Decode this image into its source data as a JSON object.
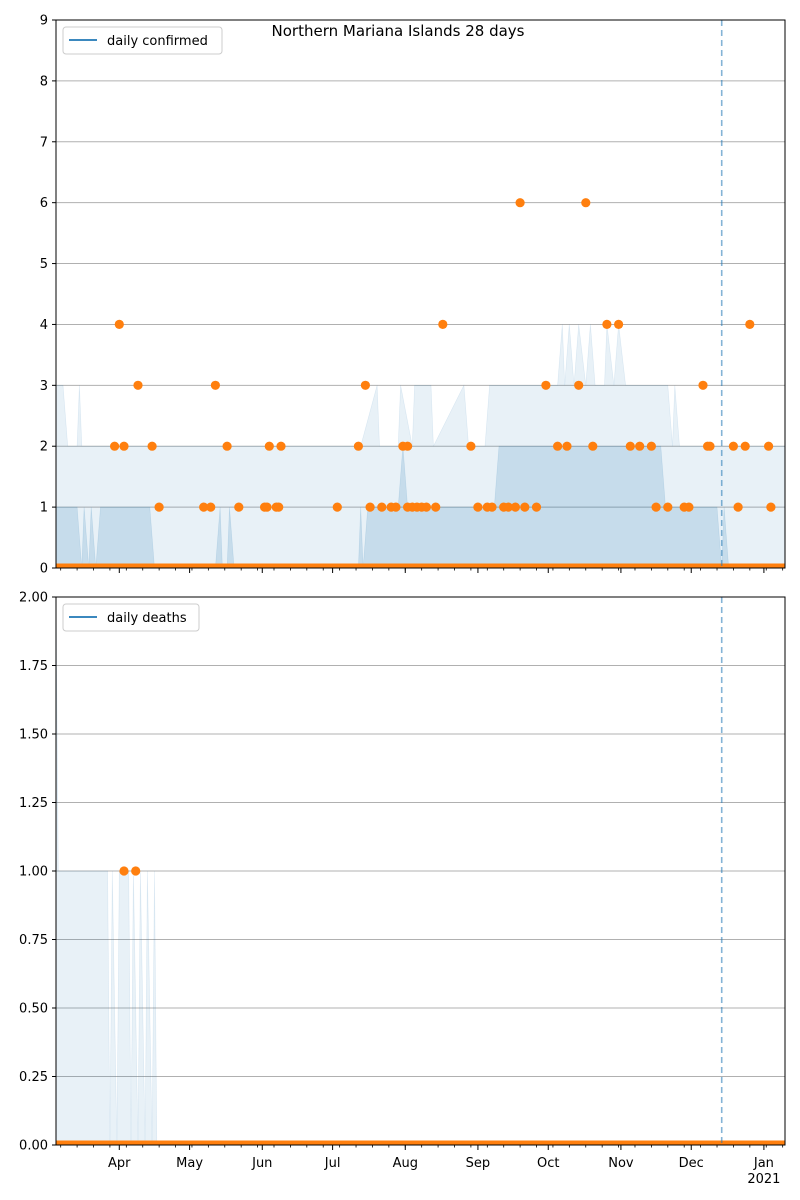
{
  "figure": {
    "title": "Northern Mariana Islands 28 days"
  },
  "colors": {
    "series_line": "#1f77b4",
    "points": "#ff7f0e",
    "band": "#1f77b4",
    "grid": "#b0b0b0",
    "marker_line": "#1f77b4"
  },
  "chart_data": [
    {
      "type": "scatter",
      "name": "confirmed-panel",
      "legend": [
        "daily confirmed"
      ],
      "legend_placement": "top-left",
      "x_type": "date",
      "xlim": [
        "2020-03-05",
        "2021-01-10"
      ],
      "ylim": [
        0,
        9
      ],
      "yticks": [
        0,
        1,
        2,
        3,
        4,
        5,
        6,
        7,
        8,
        9
      ],
      "ytick_labels": [
        "0",
        "1",
        "2",
        "3",
        "4",
        "5",
        "6",
        "7",
        "8",
        "9"
      ],
      "xticks": [
        "2020-04-01",
        "2020-05-01",
        "2020-06-01",
        "2020-07-01",
        "2020-08-01",
        "2020-09-01",
        "2020-10-01",
        "2020-11-01",
        "2020-12-01",
        "2021-01-01"
      ],
      "xtick_labels": [
        "Apr",
        "May",
        "Jun",
        "Jul",
        "Aug",
        "Sep",
        "Oct",
        "Nov",
        "Dec",
        "Jan"
      ],
      "xtick_year_label": "2021",
      "grid": "horizontal",
      "vline": "2020-12-14",
      "points": [
        {
          "x": "2020-03-30",
          "y": 2
        },
        {
          "x": "2020-04-01",
          "y": 4
        },
        {
          "x": "2020-04-03",
          "y": 2
        },
        {
          "x": "2020-04-09",
          "y": 3
        },
        {
          "x": "2020-04-15",
          "y": 2
        },
        {
          "x": "2020-04-18",
          "y": 1
        },
        {
          "x": "2020-05-07",
          "y": 1
        },
        {
          "x": "2020-05-10",
          "y": 1
        },
        {
          "x": "2020-05-12",
          "y": 3
        },
        {
          "x": "2020-05-17",
          "y": 2
        },
        {
          "x": "2020-05-22",
          "y": 1
        },
        {
          "x": "2020-06-02",
          "y": 1
        },
        {
          "x": "2020-06-03",
          "y": 1
        },
        {
          "x": "2020-06-04",
          "y": 2
        },
        {
          "x": "2020-06-07",
          "y": 1
        },
        {
          "x": "2020-06-08",
          "y": 1
        },
        {
          "x": "2020-06-09",
          "y": 2
        },
        {
          "x": "2020-07-03",
          "y": 1
        },
        {
          "x": "2020-07-12",
          "y": 2
        },
        {
          "x": "2020-07-15",
          "y": 3
        },
        {
          "x": "2020-07-17",
          "y": 1
        },
        {
          "x": "2020-07-22",
          "y": 1
        },
        {
          "x": "2020-07-26",
          "y": 1
        },
        {
          "x": "2020-07-28",
          "y": 1
        },
        {
          "x": "2020-07-31",
          "y": 2
        },
        {
          "x": "2020-08-02",
          "y": 2
        },
        {
          "x": "2020-08-02",
          "y": 1
        },
        {
          "x": "2020-08-04",
          "y": 1
        },
        {
          "x": "2020-08-06",
          "y": 1
        },
        {
          "x": "2020-08-08",
          "y": 1
        },
        {
          "x": "2020-08-10",
          "y": 1
        },
        {
          "x": "2020-08-14",
          "y": 1
        },
        {
          "x": "2020-08-17",
          "y": 4
        },
        {
          "x": "2020-08-29",
          "y": 2
        },
        {
          "x": "2020-09-01",
          "y": 1
        },
        {
          "x": "2020-09-05",
          "y": 1
        },
        {
          "x": "2020-09-07",
          "y": 1
        },
        {
          "x": "2020-09-12",
          "y": 1
        },
        {
          "x": "2020-09-14",
          "y": 1
        },
        {
          "x": "2020-09-17",
          "y": 1
        },
        {
          "x": "2020-09-19",
          "y": 6
        },
        {
          "x": "2020-09-21",
          "y": 1
        },
        {
          "x": "2020-09-26",
          "y": 1
        },
        {
          "x": "2020-09-30",
          "y": 3
        },
        {
          "x": "2020-10-05",
          "y": 2
        },
        {
          "x": "2020-10-09",
          "y": 2
        },
        {
          "x": "2020-10-14",
          "y": 3
        },
        {
          "x": "2020-10-17",
          "y": 6
        },
        {
          "x": "2020-10-20",
          "y": 2
        },
        {
          "x": "2020-10-26",
          "y": 4
        },
        {
          "x": "2020-10-31",
          "y": 4
        },
        {
          "x": "2020-11-05",
          "y": 2
        },
        {
          "x": "2020-11-09",
          "y": 2
        },
        {
          "x": "2020-11-14",
          "y": 2
        },
        {
          "x": "2020-11-16",
          "y": 1
        },
        {
          "x": "2020-11-21",
          "y": 1
        },
        {
          "x": "2020-11-28",
          "y": 1
        },
        {
          "x": "2020-11-30",
          "y": 1
        },
        {
          "x": "2020-12-06",
          "y": 3
        },
        {
          "x": "2020-12-08",
          "y": 2
        },
        {
          "x": "2020-12-09",
          "y": 2
        },
        {
          "x": "2020-12-19",
          "y": 2
        },
        {
          "x": "2020-12-21",
          "y": 1
        },
        {
          "x": "2020-12-24",
          "y": 2
        },
        {
          "x": "2020-12-26",
          "y": 4
        },
        {
          "x": "2021-01-03",
          "y": 2
        },
        {
          "x": "2021-01-04",
          "y": 1
        }
      ],
      "zero_baseline": {
        "from": "2020-03-05",
        "to": "2021-01-10",
        "y": 0
      },
      "band_high": [
        [
          "2020-03-05",
          3
        ],
        [
          "2020-03-08",
          3
        ],
        [
          "2020-03-10",
          2
        ],
        [
          "2020-03-14",
          2
        ],
        [
          "2020-03-15",
          3
        ],
        [
          "2020-03-16",
          2
        ],
        [
          "2020-04-28",
          2
        ],
        [
          "2020-06-14",
          2
        ],
        [
          "2020-06-15",
          2
        ],
        [
          "2020-06-30",
          2
        ],
        [
          "2020-07-01",
          2
        ],
        [
          "2020-07-13",
          2
        ],
        [
          "2020-07-20",
          3
        ],
        [
          "2020-07-21",
          2
        ],
        [
          "2020-07-29",
          2
        ],
        [
          "2020-07-30",
          3
        ],
        [
          "2020-08-04",
          2
        ],
        [
          "2020-08-05",
          3
        ],
        [
          "2020-08-12",
          3
        ],
        [
          "2020-08-13",
          2
        ],
        [
          "2020-08-26",
          3
        ],
        [
          "2020-08-28",
          2
        ],
        [
          "2020-09-04",
          2
        ],
        [
          "2020-09-06",
          3
        ],
        [
          "2020-09-10",
          3
        ],
        [
          "2020-09-12",
          3
        ],
        [
          "2020-10-05",
          3
        ],
        [
          "2020-10-07",
          4
        ],
        [
          "2020-10-08",
          3
        ],
        [
          "2020-10-10",
          4
        ],
        [
          "2020-10-12",
          3
        ],
        [
          "2020-10-14",
          4
        ],
        [
          "2020-10-17",
          3
        ],
        [
          "2020-10-19",
          4
        ],
        [
          "2020-10-21",
          3
        ],
        [
          "2020-10-25",
          3
        ],
        [
          "2020-10-26",
          4
        ],
        [
          "2020-10-29",
          3
        ],
        [
          "2020-10-31",
          4
        ],
        [
          "2020-11-03",
          3
        ],
        [
          "2020-11-21",
          3
        ],
        [
          "2020-11-23",
          2
        ],
        [
          "2020-11-24",
          3
        ],
        [
          "2020-11-26",
          2
        ],
        [
          "2021-01-10",
          2
        ]
      ],
      "band_low": [
        [
          "2020-03-05",
          1
        ],
        [
          "2020-03-14",
          1
        ],
        [
          "2020-03-16",
          0
        ],
        [
          "2020-03-17",
          1
        ],
        [
          "2020-03-19",
          0
        ],
        [
          "2020-03-20",
          1
        ],
        [
          "2020-03-22",
          0
        ],
        [
          "2020-03-24",
          1
        ],
        [
          "2020-04-14",
          1
        ],
        [
          "2020-04-16",
          0
        ],
        [
          "2020-05-12",
          0
        ],
        [
          "2020-05-14",
          1
        ],
        [
          "2020-05-15",
          0
        ],
        [
          "2020-05-17",
          0
        ],
        [
          "2020-05-18",
          1
        ],
        [
          "2020-05-20",
          0
        ],
        [
          "2020-07-12",
          0
        ],
        [
          "2020-07-13",
          1
        ],
        [
          "2020-07-14",
          0
        ],
        [
          "2020-07-16",
          1
        ],
        [
          "2020-07-29",
          1
        ],
        [
          "2020-07-31",
          2
        ],
        [
          "2020-08-02",
          1
        ],
        [
          "2020-09-08",
          1
        ],
        [
          "2020-09-10",
          2
        ],
        [
          "2020-11-18",
          2
        ],
        [
          "2020-11-20",
          1
        ],
        [
          "2020-12-12",
          1
        ],
        [
          "2020-12-14",
          0
        ],
        [
          "2020-12-15",
          1
        ],
        [
          "2020-12-17",
          0
        ],
        [
          "2021-01-10",
          0
        ]
      ]
    },
    {
      "type": "scatter",
      "name": "deaths-panel",
      "legend": [
        "daily deaths"
      ],
      "legend_placement": "top-left",
      "x_type": "date",
      "xlim": [
        "2020-03-05",
        "2021-01-10"
      ],
      "ylim": [
        0,
        2
      ],
      "yticks": [
        0,
        0.25,
        0.5,
        0.75,
        1,
        1.25,
        1.5,
        1.75,
        2
      ],
      "ytick_labels": [
        "0.00",
        "0.25",
        "0.50",
        "0.75",
        "1.00",
        "1.25",
        "1.50",
        "1.75",
        "2.00"
      ],
      "xticks": [
        "2020-04-01",
        "2020-05-01",
        "2020-06-01",
        "2020-07-01",
        "2020-08-01",
        "2020-09-01",
        "2020-10-01",
        "2020-11-01",
        "2020-12-01",
        "2021-01-01"
      ],
      "xtick_labels": [
        "Apr",
        "May",
        "Jun",
        "Jul",
        "Aug",
        "Sep",
        "Oct",
        "Nov",
        "Dec",
        "Jan"
      ],
      "xtick_year_label": "2021",
      "grid": "horizontal",
      "vline": "2020-12-14",
      "points": [
        {
          "x": "2020-04-03",
          "y": 1
        },
        {
          "x": "2020-04-08",
          "y": 1
        }
      ],
      "zero_baseline": {
        "from": "2020-03-05",
        "to": "2021-01-10",
        "y": 0
      },
      "band_high": [
        [
          "2020-03-05",
          2
        ],
        [
          "2020-03-06",
          1
        ],
        [
          "2020-03-27",
          1
        ],
        [
          "2020-03-28",
          0
        ],
        [
          "2020-03-29",
          1
        ],
        [
          "2020-03-31",
          0
        ],
        [
          "2020-04-01",
          1
        ],
        [
          "2020-04-05",
          1
        ],
        [
          "2020-04-06",
          0
        ],
        [
          "2020-04-07",
          1
        ],
        [
          "2020-04-09",
          0
        ],
        [
          "2020-04-10",
          1
        ],
        [
          "2020-04-12",
          0
        ],
        [
          "2020-04-13",
          1
        ],
        [
          "2020-04-15",
          0
        ],
        [
          "2020-04-16",
          1
        ],
        [
          "2020-04-17",
          0
        ],
        [
          "2021-01-10",
          0
        ]
      ]
    }
  ]
}
